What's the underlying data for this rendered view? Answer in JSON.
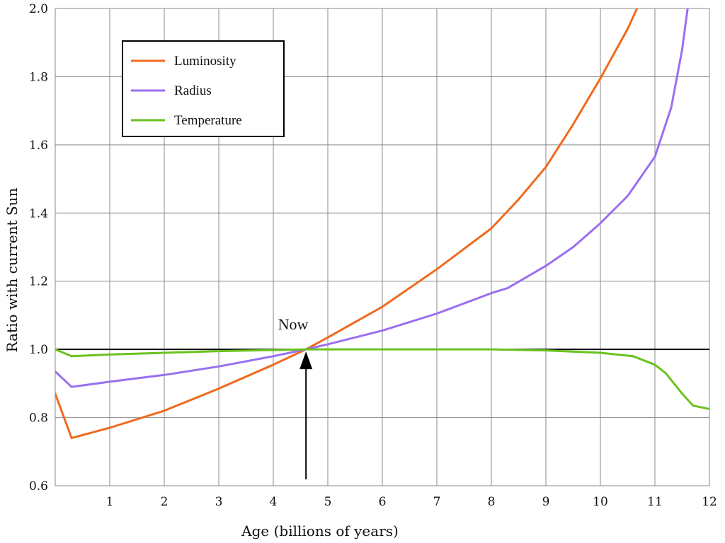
{
  "chart_data": {
    "type": "line",
    "title": "",
    "xlabel": "Age (billions of years)",
    "ylabel": "Ratio with current Sun",
    "xlim": [
      0,
      12
    ],
    "ylim": [
      0.6,
      2.0
    ],
    "x_ticks": [
      1,
      2,
      3,
      4,
      5,
      6,
      7,
      8,
      9,
      10,
      11,
      12
    ],
    "x_tick_labels": [
      "1",
      "2",
      "3",
      "4",
      "5",
      "6",
      "7",
      "8",
      "9",
      "10",
      "11",
      "12"
    ],
    "y_ticks": [
      0.6,
      0.8,
      1.0,
      1.2,
      1.4,
      1.6,
      1.8,
      2.0
    ],
    "y_tick_labels": [
      "0.6",
      "0.8",
      "1.0",
      "1.2",
      "1.4",
      "1.6",
      "1.8",
      "2.0"
    ],
    "grid": true,
    "legend_position": "top-left",
    "reference_line": {
      "y": 1.0,
      "color": "#000000"
    },
    "series": [
      {
        "name": "Luminosity",
        "color": "#f06a1e",
        "points": [
          [
            0,
            0.87
          ],
          [
            0.3,
            0.74
          ],
          [
            1,
            0.77
          ],
          [
            2,
            0.82
          ],
          [
            3,
            0.885
          ],
          [
            4,
            0.955
          ],
          [
            4.6,
            1.0
          ],
          [
            5,
            1.035
          ],
          [
            6,
            1.125
          ],
          [
            7,
            1.235
          ],
          [
            8,
            1.355
          ],
          [
            8.5,
            1.44
          ],
          [
            9,
            1.535
          ],
          [
            9.5,
            1.66
          ],
          [
            10,
            1.795
          ],
          [
            10.5,
            1.94
          ],
          [
            10.7,
            2.01
          ]
        ]
      },
      {
        "name": "Radius",
        "color": "#9a6ff0",
        "points": [
          [
            0,
            0.935
          ],
          [
            0.3,
            0.89
          ],
          [
            1,
            0.905
          ],
          [
            2,
            0.925
          ],
          [
            3,
            0.95
          ],
          [
            4,
            0.98
          ],
          [
            4.6,
            1.0
          ],
          [
            5,
            1.015
          ],
          [
            6,
            1.055
          ],
          [
            7,
            1.105
          ],
          [
            8,
            1.165
          ],
          [
            8.3,
            1.18
          ],
          [
            9,
            1.245
          ],
          [
            9.5,
            1.3
          ],
          [
            10,
            1.37
          ],
          [
            10.5,
            1.45
          ],
          [
            11,
            1.565
          ],
          [
            11.3,
            1.71
          ],
          [
            11.5,
            1.88
          ],
          [
            11.6,
            2.0
          ]
        ]
      },
      {
        "name": "Temperature",
        "color": "#6ac21e",
        "points": [
          [
            0,
            1.0
          ],
          [
            0.3,
            0.98
          ],
          [
            1,
            0.985
          ],
          [
            2,
            0.99
          ],
          [
            3,
            0.995
          ],
          [
            4,
            0.998
          ],
          [
            4.6,
            1.0
          ],
          [
            5,
            1.0
          ],
          [
            6,
            1.0
          ],
          [
            7,
            1.0
          ],
          [
            8,
            1.0
          ],
          [
            9,
            0.997
          ],
          [
            10,
            0.99
          ],
          [
            10.6,
            0.98
          ],
          [
            11,
            0.955
          ],
          [
            11.2,
            0.93
          ],
          [
            11.5,
            0.87
          ],
          [
            11.7,
            0.835
          ],
          [
            12,
            0.825
          ]
        ]
      }
    ],
    "annotations": [
      {
        "text": "Now",
        "x": 4.6,
        "y": 1.0
      }
    ]
  }
}
